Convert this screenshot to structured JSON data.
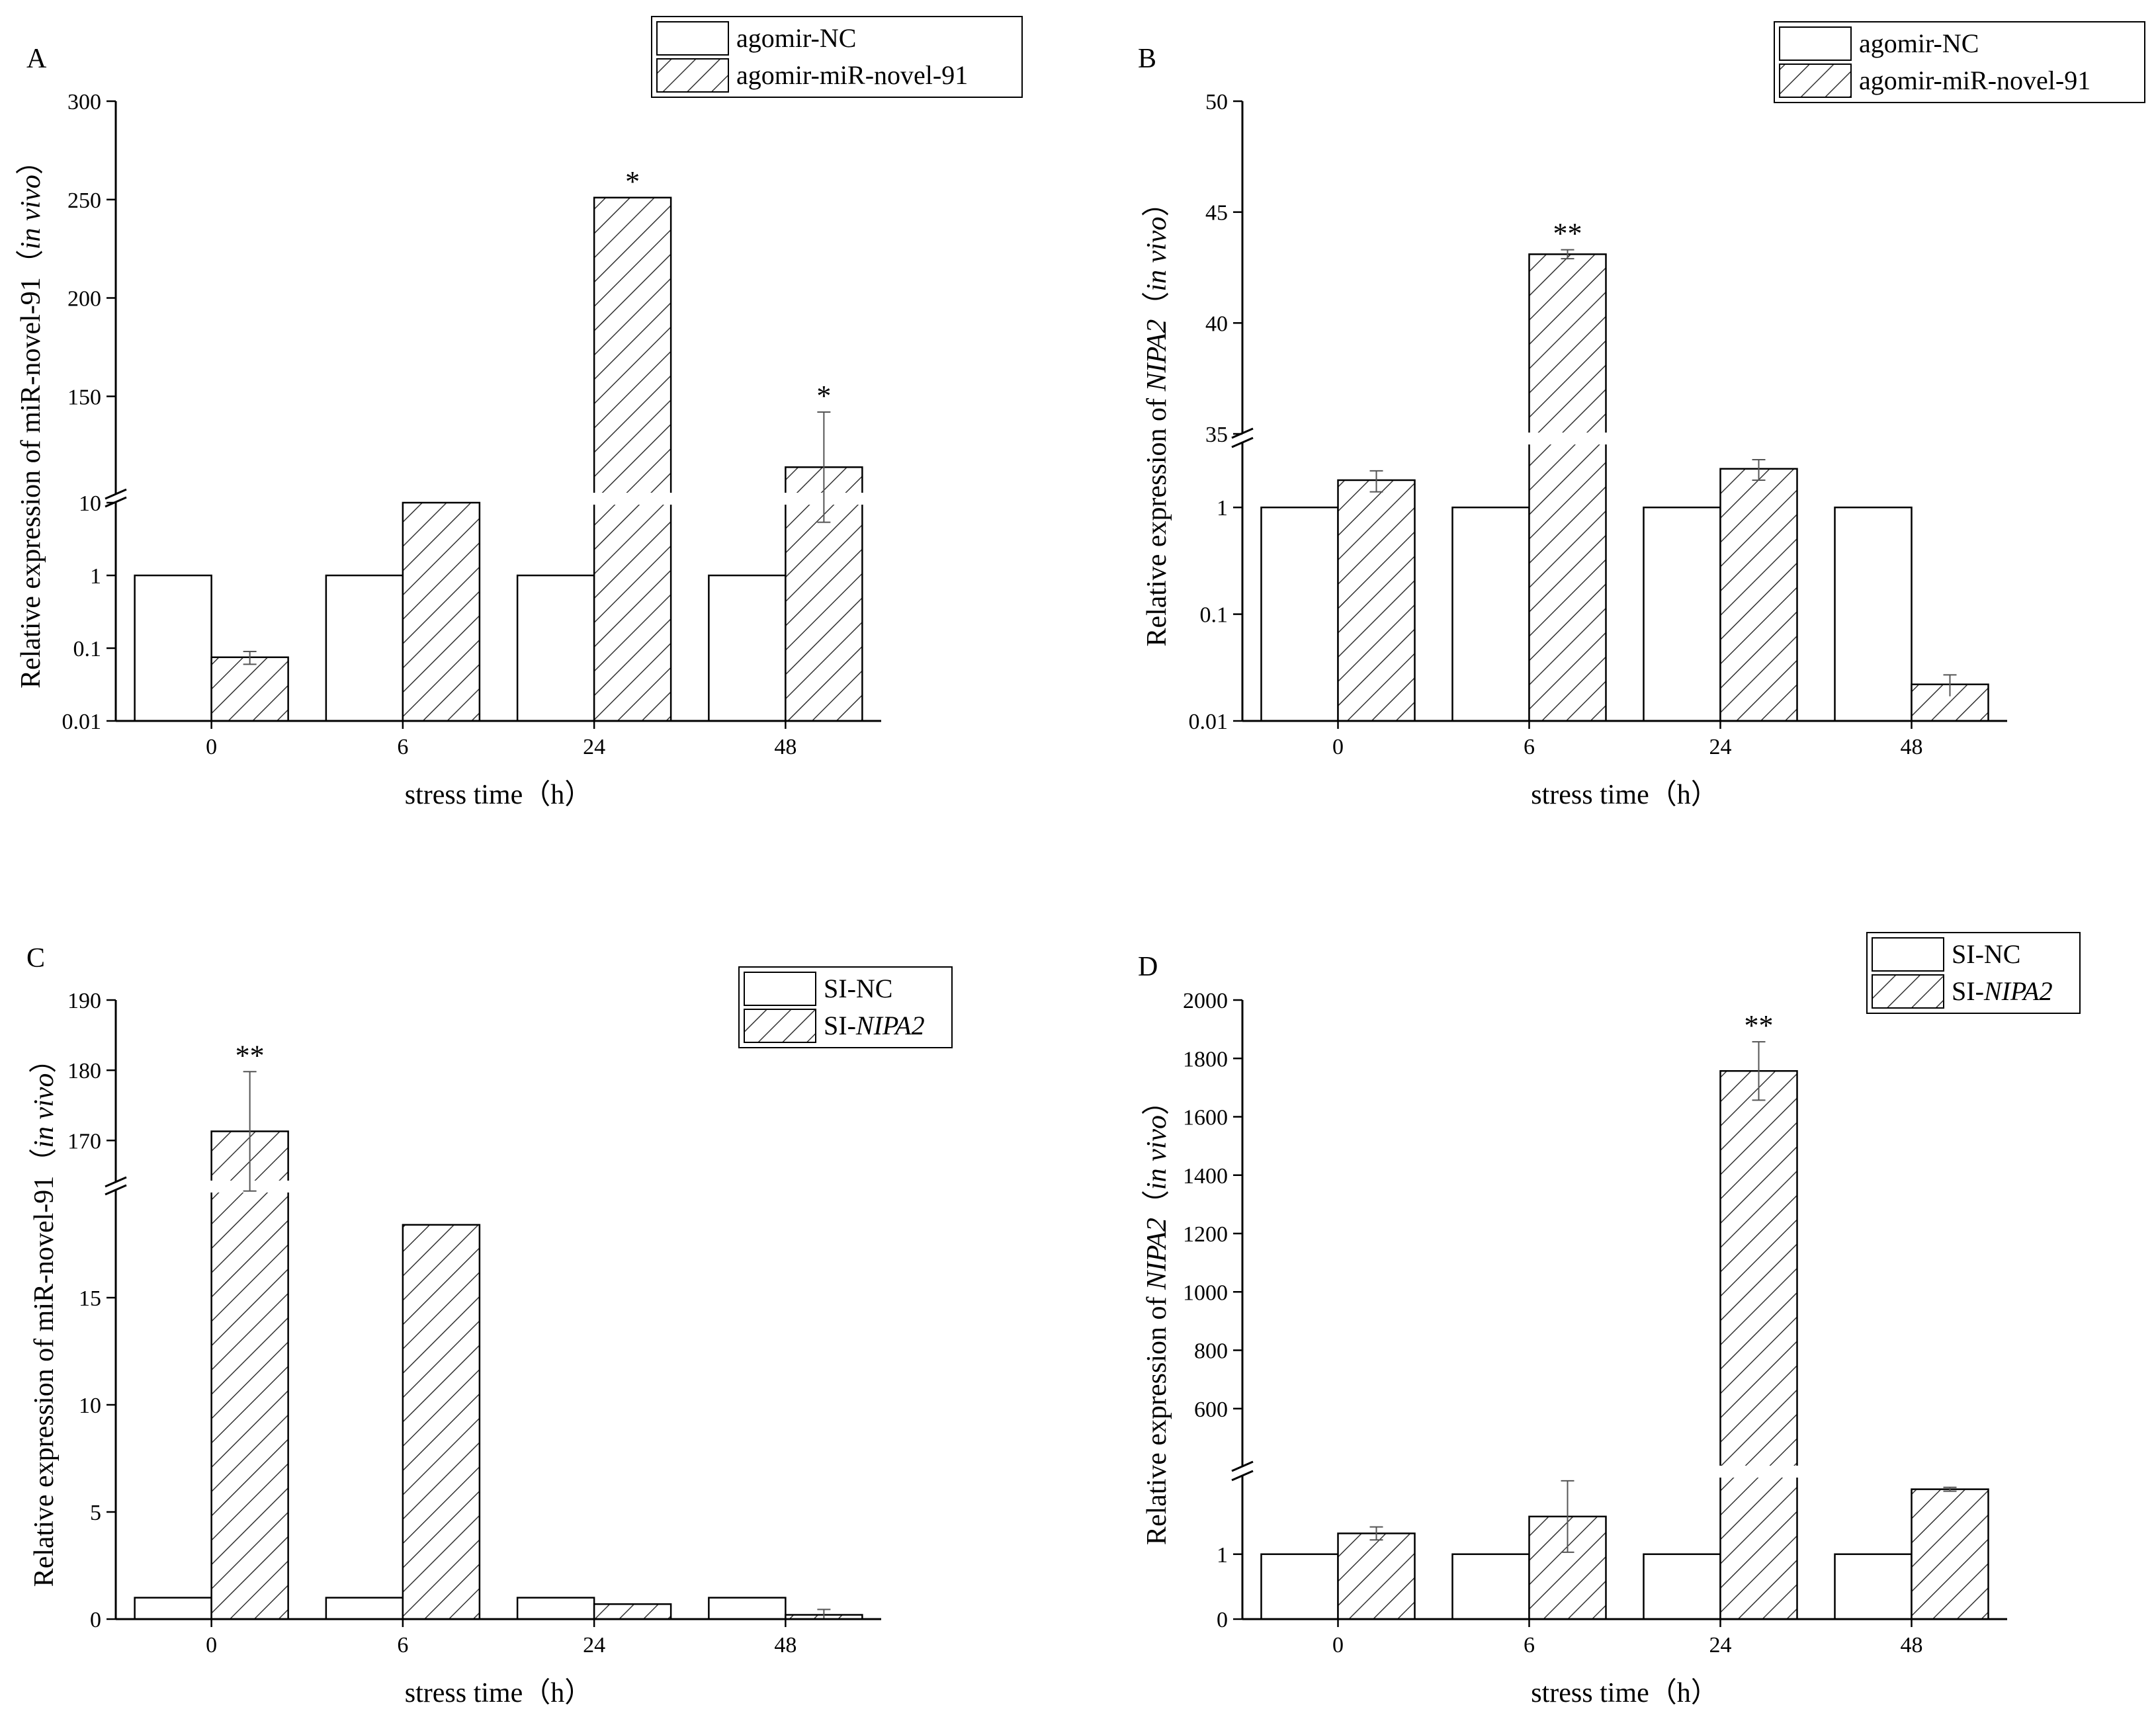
{
  "colors": {
    "control_fill": "#ffffff",
    "hatch_stroke": "#333333",
    "axis": "#000000"
  },
  "chart_data": [
    {
      "panel": "A",
      "type": "bar",
      "broken_axis": true,
      "lower_scale": "log",
      "upper_scale": "linear",
      "categories": [
        "0",
        "6",
        "24",
        "48"
      ],
      "xlabel": "stress time（h）",
      "ylabel_parts": [
        {
          "text": "Relative expression of miR-novel-91（",
          "italic": false
        },
        {
          "text": "in vivo",
          "italic": true
        },
        {
          "text": "）",
          "italic": false
        }
      ],
      "lower_range": [
        0.01,
        10
      ],
      "lower_ticks": [
        "0.01",
        "0.1",
        "1",
        "10"
      ],
      "upper_range": [
        100,
        300
      ],
      "upper_ticks": [
        "150",
        "200",
        "250",
        "300"
      ],
      "series": [
        {
          "name": "agomir-NC",
          "pattern": "open",
          "values": [
            1,
            1,
            1,
            1
          ],
          "errors": [
            0,
            0,
            0,
            0
          ]
        },
        {
          "name": "agomir-miR-novel-91",
          "pattern": "hatch",
          "values": [
            0.075,
            10,
            251,
            114
          ],
          "errors": [
            0.015,
            0,
            0,
            28
          ]
        }
      ],
      "significance": [
        "",
        "",
        "*",
        "*"
      ]
    },
    {
      "panel": "B",
      "type": "bar",
      "broken_axis": true,
      "lower_scale": "log",
      "upper_scale": "linear",
      "categories": [
        "0",
        "6",
        "24",
        "48"
      ],
      "xlabel": "stress time（h）",
      "ylabel_parts": [
        {
          "text": "Relative expression of ",
          "italic": false
        },
        {
          "text": "NIPA2",
          "italic": true
        },
        {
          "text": "（",
          "italic": false
        },
        {
          "text": "in vivo",
          "italic": true
        },
        {
          "text": "）",
          "italic": false
        }
      ],
      "lower_range": [
        0.01,
        4
      ],
      "lower_ticks": [
        "0.01",
        "0.1",
        "1"
      ],
      "upper_range": [
        35,
        50
      ],
      "upper_ticks": [
        "35",
        "40",
        "45",
        "50"
      ],
      "series": [
        {
          "name": "agomir-NC",
          "pattern": "open",
          "values": [
            1,
            1,
            1,
            1
          ],
          "errors": [
            0,
            0,
            0,
            0
          ]
        },
        {
          "name": "agomir-miR-novel-91",
          "pattern": "hatch",
          "values": [
            1.8,
            43.1,
            2.3,
            0.022
          ],
          "errors": [
            0.4,
            0.2,
            0.5,
            0.005
          ]
        }
      ],
      "significance": [
        "",
        "**",
        "",
        ""
      ]
    },
    {
      "panel": "C",
      "type": "bar",
      "broken_axis": true,
      "lower_scale": "linear",
      "upper_scale": "linear",
      "categories": [
        "0",
        "6",
        "24",
        "48"
      ],
      "xlabel": "stress time（h）",
      "ylabel_parts": [
        {
          "text": "Relative expression of miR-novel-91（",
          "italic": false
        },
        {
          "text": "in vivo",
          "italic": true
        },
        {
          "text": "）",
          "italic": false
        }
      ],
      "lower_range": [
        0,
        20
      ],
      "lower_ticks": [
        "0",
        "5",
        "10",
        "15"
      ],
      "upper_range": [
        164,
        190
      ],
      "upper_ticks": [
        "170",
        "180",
        "190"
      ],
      "series": [
        {
          "name": "SI-NC",
          "pattern": "open",
          "values": [
            1,
            1,
            1,
            1
          ],
          "errors": [
            0,
            0,
            0,
            0
          ]
        },
        {
          "name": "SI-NIPA2",
          "name_parts": [
            {
              "text": "SI-",
              "italic": false
            },
            {
              "text": "NIPA2",
              "italic": true
            }
          ],
          "pattern": "hatch",
          "values": [
            171.3,
            18.4,
            0.7,
            0.2
          ],
          "errors": [
            8.5,
            0,
            0,
            0.25
          ]
        }
      ],
      "significance": [
        "**",
        "",
        "",
        ""
      ]
    },
    {
      "panel": "D",
      "type": "bar",
      "broken_axis": true,
      "lower_scale": "linear",
      "upper_scale": "linear",
      "categories": [
        "0",
        "6",
        "24",
        "48"
      ],
      "xlabel": "stress time（h）",
      "ylabel_parts": [
        {
          "text": "Relative expression of ",
          "italic": false
        },
        {
          "text": "NIPA2",
          "italic": true
        },
        {
          "text": "（",
          "italic": false
        },
        {
          "text": "in vivo",
          "italic": true
        },
        {
          "text": "）",
          "italic": false
        }
      ],
      "lower_range": [
        0,
        2.2
      ],
      "lower_ticks": [
        "0",
        "1"
      ],
      "upper_range": [
        400,
        2000
      ],
      "upper_ticks": [
        "600",
        "800",
        "1000",
        "1200",
        "1400",
        "1600",
        "1800",
        "2000"
      ],
      "series": [
        {
          "name": "SI-NC",
          "pattern": "open",
          "values": [
            1,
            1,
            1,
            1
          ],
          "errors": [
            0,
            0,
            0,
            0
          ]
        },
        {
          "name": "SI-NIPA2",
          "name_parts": [
            {
              "text": "SI-",
              "italic": false
            },
            {
              "text": "NIPA2",
              "italic": true
            }
          ],
          "pattern": "hatch",
          "values": [
            1.32,
            1.58,
            1757,
            2.0
          ],
          "errors": [
            0.1,
            0.55,
            100,
            0.03
          ]
        }
      ],
      "significance": [
        "",
        "",
        "**",
        ""
      ]
    }
  ]
}
